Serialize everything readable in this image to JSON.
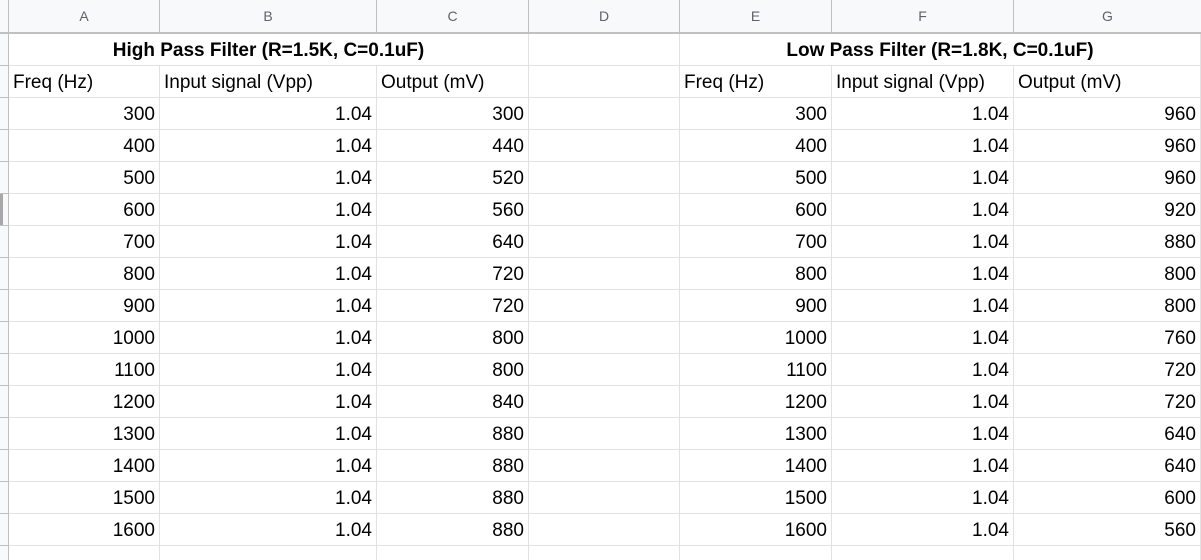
{
  "columns": [
    "A",
    "B",
    "C",
    "D",
    "E",
    "F",
    "G"
  ],
  "high_pass": {
    "title": "High Pass Filter (R=1.5K, C=0.1uF)",
    "headers": [
      "Freq (Hz)",
      "Input signal (Vpp)",
      "Output (mV)"
    ],
    "rows": [
      [
        "300",
        "1.04",
        "300"
      ],
      [
        "400",
        "1.04",
        "440"
      ],
      [
        "500",
        "1.04",
        "520"
      ],
      [
        "600",
        "1.04",
        "560"
      ],
      [
        "700",
        "1.04",
        "640"
      ],
      [
        "800",
        "1.04",
        "720"
      ],
      [
        "900",
        "1.04",
        "720"
      ],
      [
        "1000",
        "1.04",
        "800"
      ],
      [
        "1100",
        "1.04",
        "800"
      ],
      [
        "1200",
        "1.04",
        "840"
      ],
      [
        "1300",
        "1.04",
        "880"
      ],
      [
        "1400",
        "1.04",
        "880"
      ],
      [
        "1500",
        "1.04",
        "880"
      ],
      [
        "1600",
        "1.04",
        "880"
      ]
    ]
  },
  "low_pass": {
    "title": "Low Pass Filter (R=1.8K, C=0.1uF)",
    "headers": [
      "Freq (Hz)",
      "Input signal (Vpp)",
      "Output (mV)"
    ],
    "rows": [
      [
        "300",
        "1.04",
        "960"
      ],
      [
        "400",
        "1.04",
        "960"
      ],
      [
        "500",
        "1.04",
        "960"
      ],
      [
        "600",
        "1.04",
        "920"
      ],
      [
        "700",
        "1.04",
        "880"
      ],
      [
        "800",
        "1.04",
        "800"
      ],
      [
        "900",
        "1.04",
        "800"
      ],
      [
        "1000",
        "1.04",
        "760"
      ],
      [
        "1100",
        "1.04",
        "720"
      ],
      [
        "1200",
        "1.04",
        "720"
      ],
      [
        "1300",
        "1.04",
        "640"
      ],
      [
        "1400",
        "1.04",
        "640"
      ],
      [
        "1500",
        "1.04",
        "600"
      ],
      [
        "1600",
        "1.04",
        "560"
      ]
    ]
  }
}
